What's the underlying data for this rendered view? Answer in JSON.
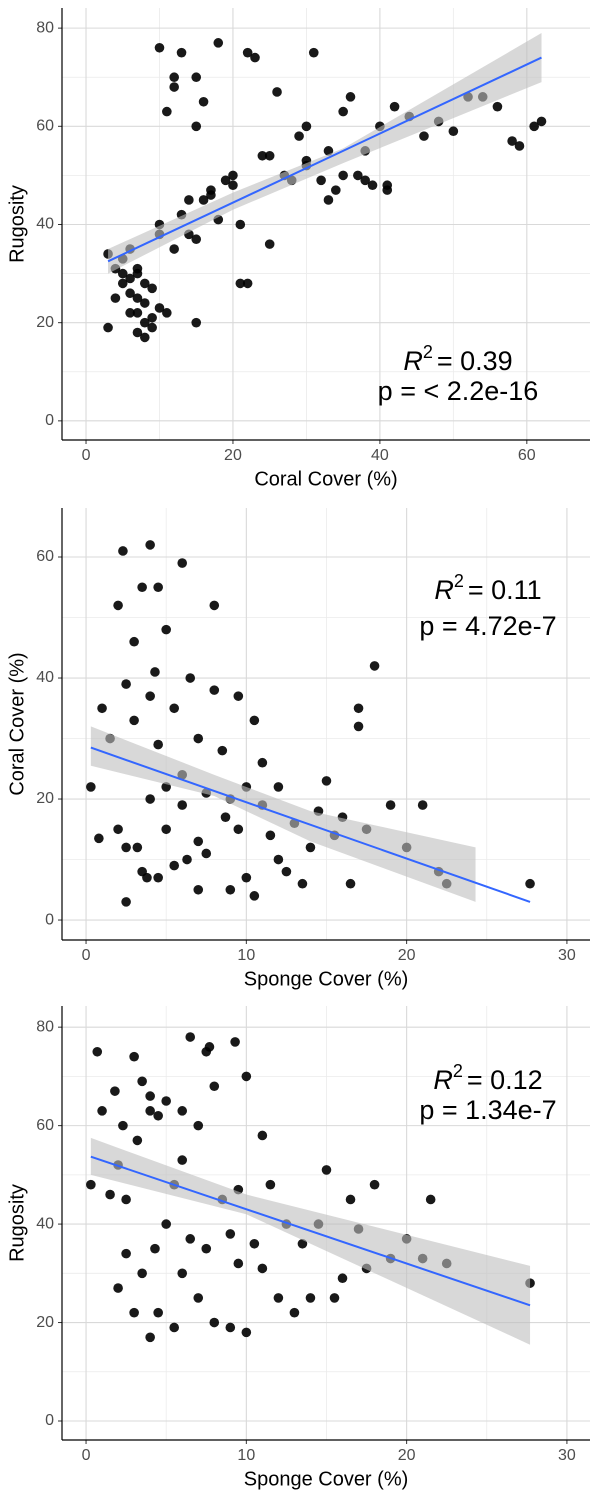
{
  "chart_data": [
    {
      "type": "scatter",
      "x_label": "Coral Cover (%)",
      "y_label": "Rugosity",
      "xlim": [
        -3.27,
        68.6
      ],
      "ylim": [
        -3.9,
        84.1
      ],
      "xticks": [
        0,
        20,
        40,
        60
      ],
      "yticks": [
        0,
        20,
        40,
        60,
        80
      ],
      "grid": true,
      "minor_grid": true,
      "point_color": "#000000",
      "fit_color": "#3366ff",
      "band_color": "#bebebe",
      "x": [
        3,
        4,
        5,
        5,
        6,
        6,
        7,
        7,
        7,
        8,
        8,
        8,
        9,
        9,
        10,
        10,
        4,
        6,
        7,
        8,
        9,
        5,
        6,
        7,
        3,
        10,
        11,
        12,
        12,
        13,
        14,
        15,
        15,
        16,
        17,
        18,
        19,
        20,
        21,
        22,
        10,
        11,
        12,
        13,
        14,
        15,
        16,
        18,
        20,
        23,
        24,
        25,
        26,
        27,
        28,
        29,
        30,
        30,
        31,
        32,
        33,
        34,
        35,
        36,
        37,
        38,
        39,
        40,
        41,
        42,
        44,
        46,
        48,
        50,
        52,
        54,
        56,
        58,
        59,
        61,
        62,
        25,
        30,
        33,
        35,
        38,
        41,
        15,
        17,
        21,
        22
      ],
      "values": [
        34,
        31,
        30,
        28,
        29,
        26,
        25,
        30,
        22,
        24,
        20,
        28,
        27,
        19,
        23,
        38,
        25,
        22,
        18,
        17,
        21,
        33,
        35,
        31,
        19,
        40,
        22,
        35,
        70,
        75,
        45,
        70,
        60,
        65,
        47,
        77,
        49,
        50,
        28,
        75,
        76,
        63,
        68,
        42,
        38,
        20,
        45,
        41,
        48,
        74,
        54,
        36,
        67,
        50,
        49,
        58,
        60,
        53,
        75,
        49,
        55,
        47,
        63,
        66,
        50,
        55,
        48,
        60,
        48,
        64,
        62,
        58,
        61,
        59,
        66,
        66,
        64,
        57,
        56,
        60,
        61,
        54,
        52,
        45,
        50,
        49,
        47,
        37,
        46,
        40,
        28
      ],
      "fit": {
        "x": [
          3,
          62
        ],
        "y": [
          32.5,
          74
        ]
      },
      "band": {
        "x": [
          3,
          20,
          35,
          62
        ],
        "lower": [
          30,
          43,
          52.5,
          69
        ],
        "upper": [
          35,
          46.5,
          55.5,
          79
        ]
      },
      "annotation": {
        "r": "R",
        "sup": "2",
        "value": "= 0.39",
        "p": "p = < 2.2e-16"
      }
    },
    {
      "type": "scatter",
      "x_label": "Sponge Cover (%)",
      "y_label": "Coral Cover (%)",
      "xlim": [
        -1.5,
        31.44
      ],
      "ylim": [
        -3.3,
        68.1
      ],
      "xticks": [
        0,
        10,
        20,
        30
      ],
      "yticks": [
        0,
        20,
        40,
        60
      ],
      "grid": true,
      "minor_grid": true,
      "point_color": "#000000",
      "fit_color": "#3366ff",
      "band_color": "#bebebe",
      "x": [
        0.3,
        0.8,
        1,
        1.5,
        2,
        2,
        2.3,
        2.5,
        2.5,
        3,
        3,
        3.2,
        3.5,
        3.5,
        4,
        4,
        4,
        4.3,
        4.5,
        4.5,
        5,
        5,
        5,
        5.5,
        5.5,
        6,
        6,
        6.3,
        6.5,
        7,
        7,
        7,
        7.5,
        7.5,
        8,
        8,
        8.5,
        8.7,
        9,
        9,
        9.5,
        9.5,
        10,
        10,
        10.5,
        10.5,
        11,
        11,
        11.5,
        12,
        12,
        12.5,
        13,
        13.5,
        14,
        14.5,
        15,
        15.5,
        16,
        16.5,
        17,
        17,
        17.5,
        18,
        19,
        20,
        21,
        22,
        22.5,
        27.7,
        2.5,
        3.8,
        6,
        4.5
      ],
      "values": [
        22,
        13.5,
        35,
        30,
        52,
        15,
        61,
        39,
        3,
        33,
        46,
        12,
        55,
        8,
        62,
        20,
        37,
        41,
        7,
        29,
        48,
        15,
        22,
        35,
        9,
        19,
        59,
        10,
        40,
        13,
        30,
        5,
        21,
        11,
        38,
        52,
        28,
        17,
        20,
        5,
        37,
        15,
        7,
        22,
        33,
        4,
        19,
        26,
        14,
        10,
        22,
        8,
        16,
        6,
        12,
        18,
        23,
        14,
        17,
        6,
        35,
        32,
        15,
        42,
        19,
        12,
        19,
        8,
        6,
        6,
        12,
        7,
        24,
        55
      ],
      "fit": {
        "x": [
          0.3,
          27.7
        ],
        "y": [
          28.5,
          3
        ]
      },
      "band": {
        "x": [
          0.3,
          8,
          14,
          24.3
        ],
        "lower": [
          25.5,
          20.5,
          13,
          3
        ],
        "upper": [
          32,
          24,
          18,
          12
        ]
      },
      "annotation": {
        "r": "R",
        "sup": "2",
        "value": "= 0.11",
        "p": "p = 4.72e-7"
      }
    },
    {
      "type": "scatter",
      "x_label": "Sponge Cover (%)",
      "y_label": "Rugosity",
      "xlim": [
        -1.5,
        31.44
      ],
      "ylim": [
        -3.86,
        84.3
      ],
      "xticks": [
        0,
        10,
        20,
        30
      ],
      "yticks": [
        0,
        20,
        40,
        60,
        80
      ],
      "grid": true,
      "minor_grid": true,
      "point_color": "#000000",
      "fit_color": "#3366ff",
      "band_color": "#bebebe",
      "x": [
        0.3,
        0.7,
        1,
        1.5,
        1.8,
        2,
        2,
        2.3,
        2.5,
        2.5,
        3,
        3,
        3.2,
        3.5,
        3.5,
        4,
        4,
        4.3,
        4.5,
        4.5,
        5,
        5,
        5.5,
        5.5,
        6,
        6,
        6.5,
        6.5,
        7,
        7,
        7.5,
        7.5,
        8,
        8,
        8.5,
        9,
        9,
        9.5,
        9.5,
        10,
        10,
        10.5,
        11,
        11,
        11.5,
        12,
        12.5,
        13,
        13.5,
        14,
        14.5,
        15,
        15.5,
        16,
        16.5,
        17,
        17.5,
        18,
        19,
        20,
        21,
        21.5,
        22.5,
        27.7,
        4,
        7.7,
        9.3,
        6
      ],
      "values": [
        48,
        75,
        63,
        46,
        67,
        52,
        27,
        60,
        34,
        45,
        74,
        22,
        57,
        69,
        30,
        63,
        17,
        35,
        62,
        22,
        65,
        40,
        48,
        19,
        63,
        30,
        78,
        37,
        60,
        25,
        75,
        35,
        68,
        20,
        45,
        38,
        19,
        47,
        32,
        70,
        18,
        36,
        58,
        31,
        48,
        25,
        40,
        22,
        36,
        25,
        40,
        51,
        25,
        29,
        45,
        39,
        31,
        48,
        33,
        37,
        33,
        45,
        32,
        28,
        66,
        76,
        77,
        53
      ],
      "fit": {
        "x": [
          0.3,
          27.7
        ],
        "y": [
          53.7,
          23.5
        ]
      },
      "band": {
        "x": [
          0.3,
          10,
          27.7
        ],
        "lower": [
          50,
          42,
          15.5
        ],
        "upper": [
          57.5,
          46,
          31.5
        ]
      },
      "annotation": {
        "r": "R",
        "sup": "2",
        "value": "= 0.12",
        "p": "p = 1.34e-7"
      }
    }
  ]
}
